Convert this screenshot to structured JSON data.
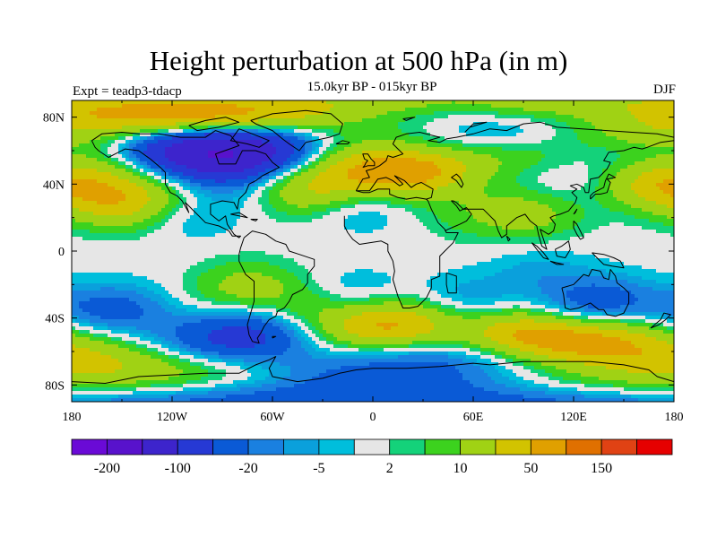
{
  "chart_data": {
    "type": "heatmap",
    "title": "Height perturbation at 500 hPa (in m)",
    "subtitle": "15.0kyr BP - 015kyr BP",
    "experiment_label": "Expt = teadp3-tdacp",
    "season_label": "DJF",
    "x_axis": {
      "range": [
        -180,
        180
      ],
      "ticks": [
        -180,
        -120,
        -60,
        0,
        60,
        120,
        180
      ],
      "tick_labels": [
        "180",
        "120W",
        "60W",
        "0",
        "60E",
        "120E",
        "180"
      ]
    },
    "y_axis": {
      "range": [
        -90,
        90
      ],
      "ticks": [
        80,
        40,
        0,
        -40,
        -80
      ],
      "tick_labels": [
        "80N",
        "40N",
        "0",
        "40S",
        "80S"
      ]
    },
    "colorbar": {
      "orientation": "horizontal",
      "colors": [
        "#6a0ad6",
        "#5812cc",
        "#3d24cc",
        "#2639d4",
        "#0a5ad6",
        "#1a80e0",
        "#0aa0dc",
        "#00bedc",
        "#e6e6e6",
        "#14d27a",
        "#3cd21e",
        "#a0d214",
        "#d2c300",
        "#e0a000",
        "#e07000",
        "#e04214",
        "#e60000"
      ],
      "tick_labels": [
        {
          "text": "-200",
          "after_box": 1
        },
        {
          "text": "-100",
          "after_box": 3
        },
        {
          "text": "-20",
          "after_box": 5
        },
        {
          "text": "-5",
          "after_box": 7
        },
        {
          "text": "2",
          "after_box": 9
        },
        {
          "text": "10",
          "after_box": 11
        },
        {
          "text": "50",
          "after_box": 13
        },
        {
          "text": "150",
          "after_box": 15
        }
      ]
    },
    "anomaly_centers": [
      {
        "lon": -92,
        "lat": 60,
        "amp": -65
      },
      {
        "lon": -70,
        "lat": 43,
        "amp": -12
      },
      {
        "lon": -132,
        "lat": 82,
        "amp": 28
      },
      {
        "lon": -172,
        "lat": 70,
        "amp": 20
      },
      {
        "lon": -38,
        "lat": 38,
        "amp": 28
      },
      {
        "lon": -20,
        "lat": 75,
        "amp": 22
      },
      {
        "lon": 25,
        "lat": 50,
        "amp": 32
      },
      {
        "lon": 5,
        "lat": 42,
        "amp": 12
      },
      {
        "lon": -10,
        "lat": 30,
        "amp": -12
      },
      {
        "lon": 48,
        "lat": 65,
        "amp": -14
      },
      {
        "lon": 65,
        "lat": 82,
        "amp": -10
      },
      {
        "lon": 100,
        "lat": 60,
        "amp": 12
      },
      {
        "lon": 130,
        "lat": 45,
        "amp": -10
      },
      {
        "lon": 150,
        "lat": 60,
        "amp": -10
      },
      {
        "lon": 168,
        "lat": 42,
        "amp": 28
      },
      {
        "lon": -150,
        "lat": 30,
        "amp": 28
      },
      {
        "lon": -112,
        "lat": 22,
        "amp": -6
      },
      {
        "lon": -155,
        "lat": -35,
        "amp": -15
      },
      {
        "lon": -75,
        "lat": -22,
        "amp": 14
      },
      {
        "lon": -70,
        "lat": -48,
        "amp": -22
      },
      {
        "lon": -35,
        "lat": -38,
        "amp": 12
      },
      {
        "lon": -10,
        "lat": -28,
        "amp": -8
      },
      {
        "lon": 15,
        "lat": -45,
        "amp": 35
      },
      {
        "lon": 48,
        "lat": -60,
        "amp": -25
      },
      {
        "lon": 58,
        "lat": -30,
        "amp": -8
      },
      {
        "lon": 92,
        "lat": -50,
        "amp": 38
      },
      {
        "lon": 120,
        "lat": -40,
        "amp": -10
      },
      {
        "lon": 145,
        "lat": -52,
        "amp": 25
      },
      {
        "lon": 140,
        "lat": -30,
        "amp": -14
      },
      {
        "lon": 100,
        "lat": -12,
        "amp": -6
      },
      {
        "lon": 178,
        "lat": -72,
        "amp": 18
      },
      {
        "lon": -130,
        "lat": -68,
        "amp": 20
      },
      {
        "lon": -100,
        "lat": -60,
        "amp": -14
      },
      {
        "lon": -160,
        "lat": -78,
        "amp": -12
      },
      {
        "lon": 0,
        "lat": -86,
        "amp": -18
      },
      {
        "lon": 60,
        "lat": 22,
        "amp": 6
      },
      {
        "lon": 95,
        "lat": 22,
        "amp": 12
      }
    ]
  }
}
